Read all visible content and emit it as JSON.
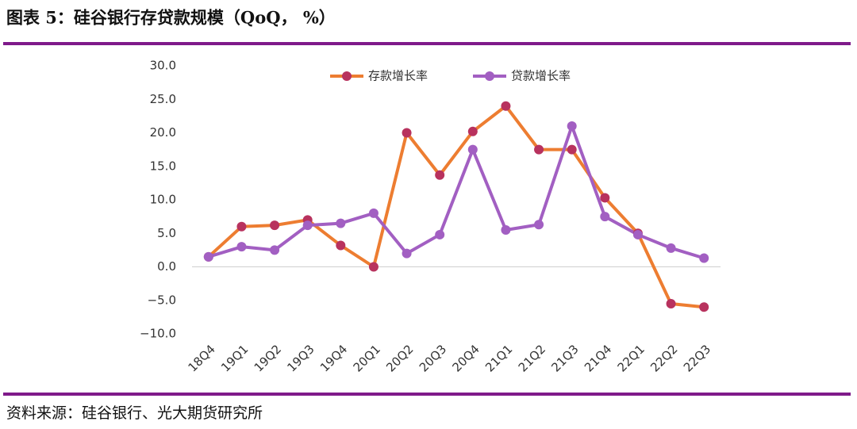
{
  "chart_data": {
    "type": "line",
    "title": "图表 5：硅谷银行存贷款规模（QoQ， %）",
    "source": "资料来源：硅谷银行、光大期货研究所",
    "categories": [
      "18Q4",
      "19Q1",
      "19Q2",
      "19Q3",
      "19Q4",
      "20Q1",
      "20Q2",
      "20Q3",
      "20Q4",
      "21Q1",
      "21Q2",
      "21Q3",
      "21Q4",
      "22Q1",
      "22Q2",
      "22Q3"
    ],
    "series": [
      {
        "name": "存款增长率",
        "color": "#ed7d31",
        "marker_color": "#b8325e",
        "values": [
          1.5,
          6.0,
          6.2,
          7.0,
          3.2,
          0.0,
          20.0,
          13.7,
          20.2,
          24.0,
          17.5,
          17.5,
          10.3,
          5.0,
          -5.5,
          -6.0
        ]
      },
      {
        "name": "贷款增长率",
        "color": "#a25fc2",
        "marker_color": "#a25fc2",
        "values": [
          1.5,
          3.0,
          2.5,
          6.2,
          6.5,
          8.0,
          2.0,
          4.8,
          17.5,
          5.5,
          6.3,
          21.0,
          7.5,
          4.8,
          2.8,
          1.3
        ]
      }
    ],
    "ylim": [
      -10,
      30
    ],
    "yticks": [
      {
        "value": -10,
        "label": "−10.0"
      },
      {
        "value": -5,
        "label": "−5.0"
      },
      {
        "value": 0,
        "label": "0.0"
      },
      {
        "value": 5,
        "label": "5.0"
      },
      {
        "value": 10,
        "label": "10.0"
      },
      {
        "value": 15,
        "label": "15.0"
      },
      {
        "value": 20,
        "label": "20.0"
      },
      {
        "value": 25,
        "label": "25.0"
      },
      {
        "value": 30,
        "label": "30.0"
      }
    ],
    "grid": false,
    "legend": "top"
  }
}
